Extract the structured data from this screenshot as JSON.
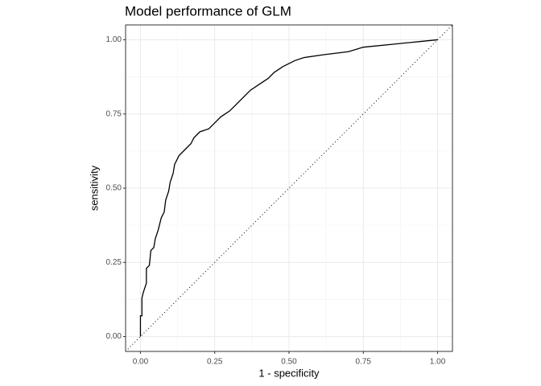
{
  "chart_data": {
    "type": "line",
    "title": "Model performance of GLM",
    "x_label": "1 - specificity",
    "y_label": "sensitivity",
    "x": [
      0,
      0,
      0.005,
      0.005,
      0.01,
      0.02,
      0.02,
      0.03,
      0.035,
      0.045,
      0.05,
      0.06,
      0.07,
      0.08,
      0.085,
      0.095,
      0.1,
      0.11,
      0.115,
      0.13,
      0.15,
      0.17,
      0.18,
      0.2,
      0.23,
      0.25,
      0.27,
      0.3,
      0.32,
      0.34,
      0.37,
      0.4,
      0.43,
      0.45,
      0.48,
      0.52,
      0.55,
      0.62,
      0.7,
      0.75,
      0.85,
      0.95,
      1
    ],
    "series": [
      {
        "name": "GLM",
        "color": "#000000",
        "values": [
          0,
          0.07,
          0.07,
          0.13,
          0.15,
          0.18,
          0.23,
          0.24,
          0.29,
          0.3,
          0.33,
          0.36,
          0.4,
          0.42,
          0.46,
          0.49,
          0.52,
          0.55,
          0.58,
          0.61,
          0.63,
          0.65,
          0.67,
          0.69,
          0.7,
          0.72,
          0.74,
          0.76,
          0.78,
          0.8,
          0.83,
          0.85,
          0.87,
          0.89,
          0.91,
          0.93,
          0.94,
          0.95,
          0.96,
          0.975,
          0.985,
          0.995,
          1
        ]
      }
    ],
    "xlim": [
      -0.05,
      1.05
    ],
    "ylim": [
      -0.05,
      1.05
    ],
    "xticks": [
      {
        "value": 0,
        "label": "0.00"
      },
      {
        "value": 0.25,
        "label": "0.25"
      },
      {
        "value": 0.5,
        "label": "0.50"
      },
      {
        "value": 0.75,
        "label": "0.75"
      },
      {
        "value": 1,
        "label": "1.00"
      }
    ],
    "yticks": [
      {
        "value": 0,
        "label": "0.00"
      },
      {
        "value": 0.25,
        "label": "0.25"
      },
      {
        "value": 0.5,
        "label": "0.50"
      },
      {
        "value": 0.75,
        "label": "0.75"
      },
      {
        "value": 1,
        "label": "1.00"
      }
    ],
    "grid": true
  }
}
